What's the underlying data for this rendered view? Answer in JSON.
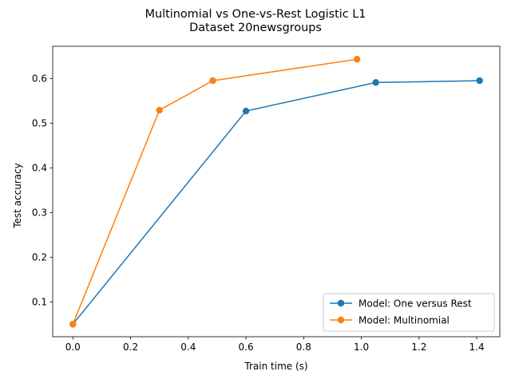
{
  "chart_data": {
    "type": "line",
    "title": "Multinomial vs One-vs-Rest Logistic L1",
    "subtitle": "Dataset 20newsgroups",
    "xlabel": "Train time (s)",
    "ylabel": "Test accuracy",
    "xlim": [
      -0.07,
      1.48
    ],
    "ylim": [
      0.022,
      0.672
    ],
    "xticks": [
      0.0,
      0.2,
      0.4,
      0.6,
      0.8,
      1.0,
      1.2,
      1.4
    ],
    "xtick_labels": [
      "0.0",
      "0.2",
      "0.4",
      "0.6",
      "0.8",
      "1.0",
      "1.2",
      "1.4"
    ],
    "yticks": [
      0.1,
      0.2,
      0.3,
      0.4,
      0.5,
      0.6
    ],
    "ytick_labels": [
      "0.1",
      "0.2",
      "0.3",
      "0.4",
      "0.5",
      "0.6"
    ],
    "grid": false,
    "legend_position": "lower-right",
    "series": [
      {
        "name": "Model: One versus Rest",
        "color": "#1f77b4",
        "x": [
          0.0,
          0.6,
          1.05,
          1.41
        ],
        "y": [
          0.05,
          0.527,
          0.591,
          0.595
        ]
      },
      {
        "name": "Model: Multinomial",
        "color": "#ff7f0e",
        "x": [
          0.0,
          0.3,
          0.485,
          0.985
        ],
        "y": [
          0.05,
          0.529,
          0.595,
          0.643
        ]
      }
    ]
  }
}
